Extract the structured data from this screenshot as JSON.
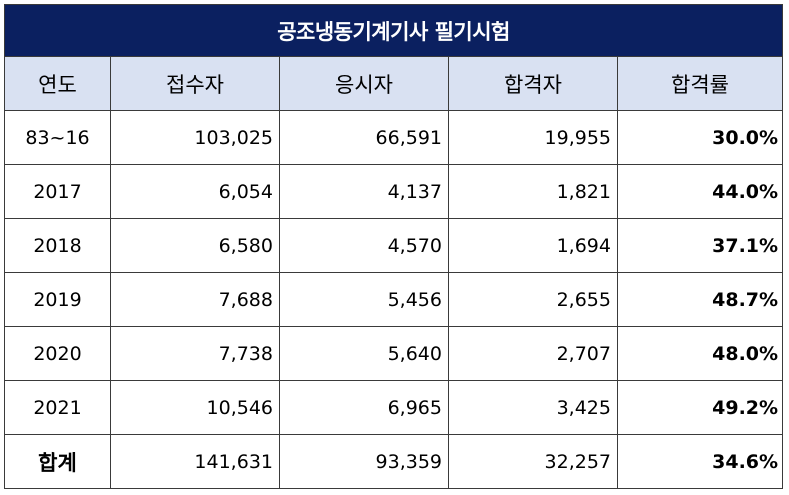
{
  "title": "공조냉동기계기사 필기시험",
  "headers": [
    "연도",
    "접수자",
    "응시자",
    "합격자",
    "합격률"
  ],
  "rows": [
    {
      "year": "83~16",
      "applicants": "103,025",
      "examinees": "66,591",
      "passers": "19,955",
      "rate": "30.0%"
    },
    {
      "year": "2017",
      "applicants": "6,054",
      "examinees": "4,137",
      "passers": "1,821",
      "rate": "44.0%"
    },
    {
      "year": "2018",
      "applicants": "6,580",
      "examinees": "4,570",
      "passers": "1,694",
      "rate": "37.1%"
    },
    {
      "year": "2019",
      "applicants": "7,688",
      "examinees": "5,456",
      "passers": "2,655",
      "rate": "48.7%"
    },
    {
      "year": "2020",
      "applicants": "7,738",
      "examinees": "5,640",
      "passers": "2,707",
      "rate": "48.0%"
    },
    {
      "year": "2021",
      "applicants": "10,546",
      "examinees": "6,965",
      "passers": "3,425",
      "rate": "49.2%"
    }
  ],
  "total": {
    "year": "합계",
    "applicants": "141,631",
    "examinees": "93,359",
    "passers": "32,257",
    "rate": "34.6%"
  },
  "colors": {
    "title_bg": "#0b2060",
    "header_bg": "#d9e1f2",
    "title_text": "#ffffff"
  }
}
